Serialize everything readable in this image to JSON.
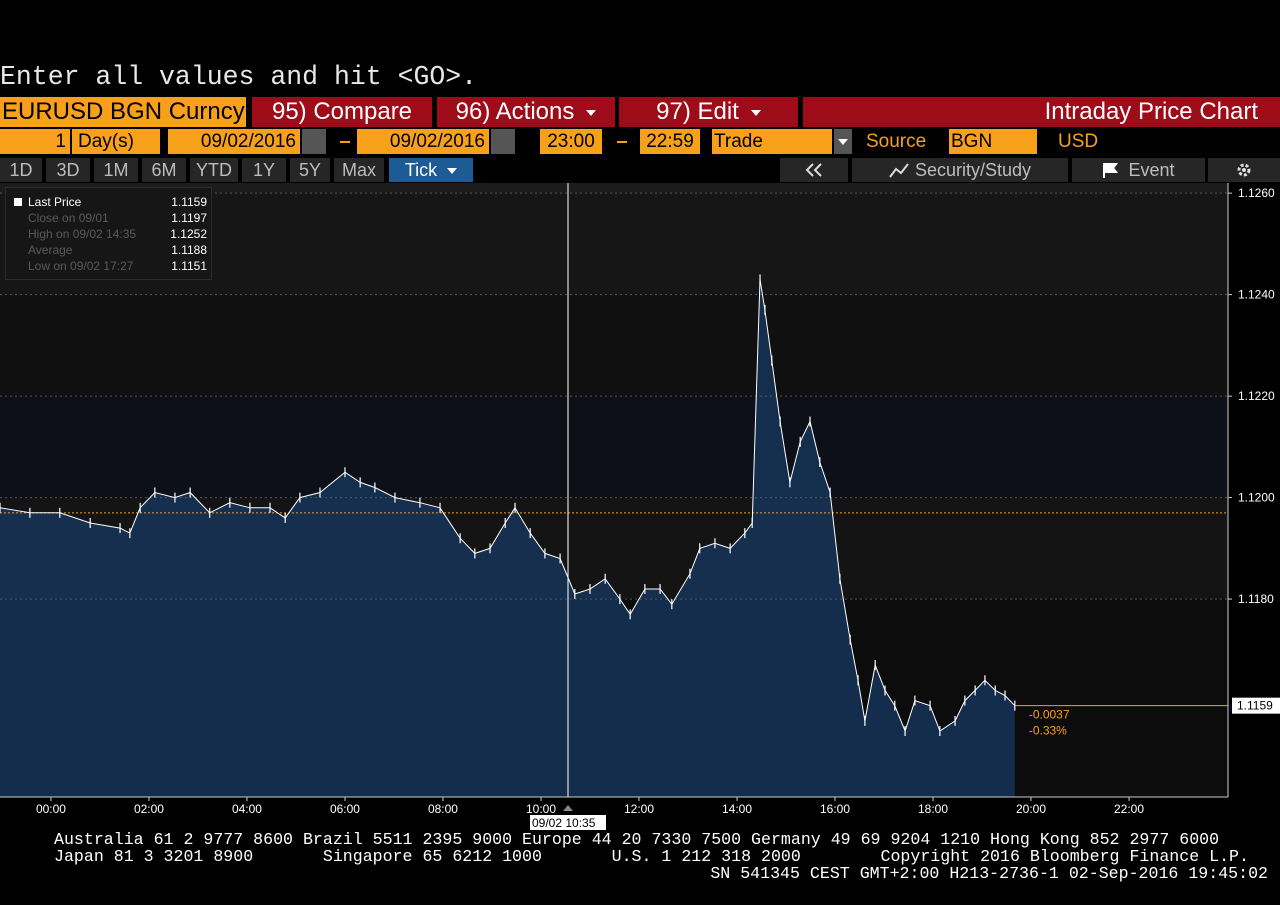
{
  "prompt": "Enter all values and hit <GO>.",
  "toolbar": {
    "security": "EURUSD BGN Curncy",
    "menus": [
      "95) Compare",
      "96) Actions",
      "97) Edit"
    ],
    "title": "Intraday Price Chart"
  },
  "range_bar": {
    "period": "1",
    "period_unit": "Day(s)",
    "start_date": "09/02/2016",
    "end_date": "09/02/2016",
    "start_time": "23:00",
    "end_time": "22:59",
    "event": "Trade",
    "source_label": "Source",
    "source": "BGN",
    "currency": "USD"
  },
  "tabs": {
    "ranges": [
      "1D",
      "3D",
      "1M",
      "6M",
      "YTD",
      "1Y",
      "5Y",
      "Max"
    ],
    "selected": "Tick"
  },
  "tools": [
    "Security/Study",
    "Event"
  ],
  "chart_data": {
    "type": "line",
    "x": [
      -1.04,
      -0.43,
      0.18,
      0.8,
      1.41,
      1.61,
      1.82,
      2.12,
      2.53,
      2.84,
      3.24,
      3.65,
      4.06,
      4.47,
      4.78,
      5.08,
      5.49,
      6.0,
      6.31,
      6.61,
      7.02,
      7.53,
      7.94,
      8.35,
      8.65,
      8.96,
      9.27,
      9.47,
      9.78,
      10.08,
      10.39,
      10.69,
      11.0,
      11.31,
      11.61,
      11.82,
      12.12,
      12.43,
      12.67,
      13.04,
      13.24,
      13.55,
      13.86,
      14.16,
      14.31,
      14.47,
      14.57,
      14.71,
      14.88,
      15.08,
      15.29,
      15.49,
      15.69,
      15.9,
      16.1,
      16.31,
      16.47,
      16.61,
      16.82,
      17.02,
      17.22,
      17.43,
      17.63,
      17.94,
      18.14,
      18.45,
      18.65,
      18.86,
      19.06,
      19.27,
      19.47,
      19.67
    ],
    "series": [
      {
        "name": "Last Price",
        "color": "#ffffff",
        "values": [
          1.1198,
          1.1197,
          1.1197,
          1.1195,
          1.1194,
          1.1193,
          1.1198,
          1.1201,
          1.12,
          1.1201,
          1.1197,
          1.1199,
          1.1198,
          1.1198,
          1.1196,
          1.12,
          1.1201,
          1.1205,
          1.1203,
          1.1202,
          1.12,
          1.1199,
          1.1198,
          1.1192,
          1.1189,
          1.119,
          1.1195,
          1.1198,
          1.1193,
          1.1189,
          1.1188,
          1.1181,
          1.1182,
          1.1184,
          1.118,
          1.1177,
          1.1182,
          1.1182,
          1.1179,
          1.1185,
          1.119,
          1.1191,
          1.119,
          1.1193,
          1.1195,
          1.1243,
          1.1237,
          1.1227,
          1.1215,
          1.1203,
          1.1211,
          1.1215,
          1.1207,
          1.1201,
          1.1184,
          1.1172,
          1.1164,
          1.1156,
          1.1167,
          1.1162,
          1.1159,
          1.1154,
          1.116,
          1.1159,
          1.1154,
          1.1156,
          1.116,
          1.1162,
          1.1164,
          1.1162,
          1.1161,
          1.1159
        ],
        "last": 1.1159,
        "change": -0.0037,
        "change_pct": "-0.33%"
      }
    ],
    "legend": [
      {
        "label": "Close on 09/01",
        "value": 1.1197
      },
      {
        "label": "High on 09/02 14:35",
        "value": 1.1252
      },
      {
        "label": "Average",
        "value": 1.1188
      },
      {
        "label": "Low on 09/02 17:27",
        "value": 1.1151
      }
    ],
    "cursor_label": "09/02 10:35",
    "xlim": [
      -1.04,
      24.02
    ],
    "xticks": [
      {
        "value": 0,
        "label": "00:00"
      },
      {
        "value": 2,
        "label": "02:00"
      },
      {
        "value": 4,
        "label": "04:00"
      },
      {
        "value": 6,
        "label": "06:00"
      },
      {
        "value": 8,
        "label": "08:00"
      },
      {
        "value": 10,
        "label": "10:00"
      },
      {
        "value": 12,
        "label": "12:00"
      },
      {
        "value": 14,
        "label": "14:00"
      },
      {
        "value": 16,
        "label": "16:00"
      },
      {
        "value": 18,
        "label": "18:00"
      },
      {
        "value": 20,
        "label": "20:00"
      },
      {
        "value": 22,
        "label": "22:00"
      }
    ],
    "ylim": [
      1.1141,
      1.1262
    ],
    "yticks": [
      {
        "value": 1.118,
        "label": "1.1180"
      },
      {
        "value": 1.12,
        "label": "1.1200"
      },
      {
        "value": 1.122,
        "label": "1.1220"
      },
      {
        "value": 1.124,
        "label": "1.1240"
      },
      {
        "value": 1.126,
        "label": "1.1260"
      }
    ],
    "grid": true
  },
  "footer": [
    "Australia 61 2 9777 8600 Brazil 5511 2395 9000 Europe 44 20 7330 7500 Germany 49 69 9204 1210 Hong Kong 852 2977 6000",
    "Japan 81 3 3201 8900       Singapore 65 6212 1000       U.S. 1 212 318 2000        Copyright 2016 Bloomberg Finance L.P.",
    "SN 541345 CEST GMT+2:00 H213-2736-1 02-Sep-2016 19:45:02"
  ]
}
